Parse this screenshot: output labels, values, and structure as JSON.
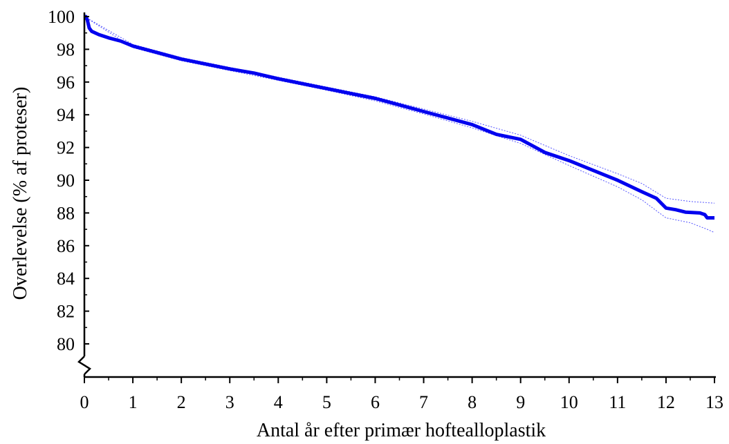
{
  "chart_data": {
    "type": "line",
    "title": "",
    "xlabel": "Antal år efter primær hoftealloplastik",
    "ylabel": "Overlevelse (% af proteser)",
    "xlim": [
      0,
      13
    ],
    "ylim": [
      78,
      100
    ],
    "y_axis_break": true,
    "grid": false,
    "x_ticks": [
      "0",
      "1",
      "2",
      "3",
      "4",
      "5",
      "6",
      "7",
      "8",
      "9",
      "10",
      "11",
      "12",
      "13"
    ],
    "y_ticks": [
      "80",
      "82",
      "84",
      "86",
      "88",
      "90",
      "92",
      "94",
      "96",
      "98",
      "100"
    ],
    "colors": {
      "line": "#0000ee",
      "ci": "#5555ff",
      "axis": "#000000"
    },
    "series": [
      {
        "role": "estimate",
        "step": false,
        "points": [
          [
            0,
            100
          ],
          [
            0.03,
            100
          ],
          [
            0.06,
            99.8
          ],
          [
            0.1,
            99.3
          ],
          [
            0.15,
            99.1
          ],
          [
            0.3,
            98.9
          ],
          [
            0.5,
            98.7
          ],
          [
            0.75,
            98.5
          ],
          [
            1,
            98.2
          ],
          [
            1.5,
            97.8
          ],
          [
            2,
            97.4
          ],
          [
            2.5,
            97.1
          ],
          [
            3,
            96.8
          ],
          [
            3.5,
            96.55
          ],
          [
            4,
            96.2
          ],
          [
            4.5,
            95.9
          ],
          [
            5,
            95.6
          ],
          [
            5.5,
            95.3
          ],
          [
            6,
            95.0
          ],
          [
            6.5,
            94.6
          ],
          [
            7,
            94.2
          ],
          [
            7.5,
            93.8
          ],
          [
            8,
            93.4
          ],
          [
            8.5,
            92.8
          ],
          [
            9,
            92.5
          ],
          [
            9.5,
            91.7
          ],
          [
            10,
            91.2
          ],
          [
            10.5,
            90.6
          ],
          [
            11,
            90.0
          ],
          [
            11.5,
            89.3
          ],
          [
            11.8,
            88.9
          ],
          [
            12,
            88.3
          ],
          [
            12.2,
            88.2
          ],
          [
            12.4,
            88.05
          ],
          [
            12.7,
            88.0
          ],
          [
            12.8,
            87.9
          ],
          [
            12.85,
            87.7
          ],
          [
            13.0,
            87.7
          ]
        ]
      },
      {
        "role": "upper_ci",
        "step": false,
        "points": [
          [
            0,
            100
          ],
          [
            1,
            98.3
          ],
          [
            2,
            97.5
          ],
          [
            3,
            96.9
          ],
          [
            4,
            96.3
          ],
          [
            5,
            95.7
          ],
          [
            6,
            95.1
          ],
          [
            7,
            94.35
          ],
          [
            8,
            93.6
          ],
          [
            9,
            92.75
          ],
          [
            10,
            91.5
          ],
          [
            11,
            90.4
          ],
          [
            11.5,
            89.8
          ],
          [
            12,
            88.9
          ],
          [
            12.5,
            88.7
          ],
          [
            13,
            88.6
          ]
        ]
      },
      {
        "role": "lower_ci",
        "step": false,
        "points": [
          [
            0,
            100
          ],
          [
            1,
            98.1
          ],
          [
            2,
            97.3
          ],
          [
            3,
            96.7
          ],
          [
            4,
            96.1
          ],
          [
            5,
            95.5
          ],
          [
            6,
            94.85
          ],
          [
            7,
            94.05
          ],
          [
            8,
            93.2
          ],
          [
            9,
            92.25
          ],
          [
            10,
            90.9
          ],
          [
            11,
            89.6
          ],
          [
            11.5,
            88.8
          ],
          [
            12,
            87.7
          ],
          [
            12.5,
            87.4
          ],
          [
            12.85,
            87.0
          ],
          [
            13,
            86.8
          ]
        ]
      }
    ]
  }
}
